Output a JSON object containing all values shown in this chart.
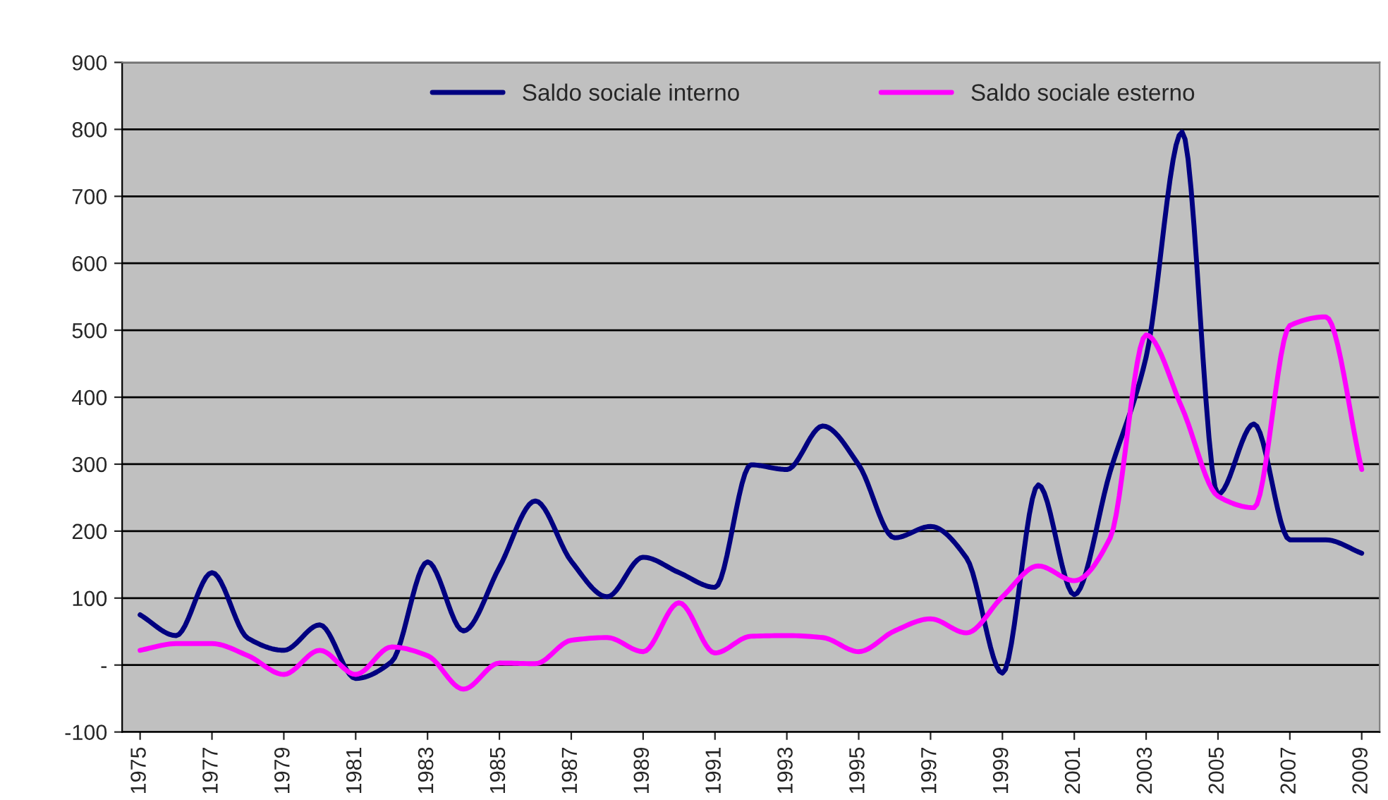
{
  "chart_data": {
    "type": "line",
    "x": [
      1975,
      1976,
      1977,
      1978,
      1979,
      1980,
      1981,
      1982,
      1983,
      1984,
      1985,
      1986,
      1987,
      1988,
      1989,
      1990,
      1991,
      1992,
      1993,
      1994,
      1995,
      1996,
      1997,
      1998,
      1999,
      2000,
      2001,
      2002,
      2003,
      2004,
      2005,
      2006,
      2007,
      2008,
      2009
    ],
    "series": [
      {
        "name": "Saldo sociale interno",
        "color": "#000080",
        "values": [
          75,
          44,
          138,
          40,
          22,
          60,
          -20,
          5,
          154,
          51,
          146,
          245,
          155,
          102,
          161,
          138,
          116,
          299,
          292,
          357,
          299,
          190,
          207,
          160,
          -12,
          269,
          105,
          289,
          460,
          796,
          255,
          360,
          187,
          187,
          167
        ]
      },
      {
        "name": "Saldo sociale esterno",
        "color": "#ff00ff",
        "values": [
          22,
          32,
          32,
          14,
          -14,
          22,
          -14,
          27,
          14,
          -36,
          3,
          2,
          37,
          41,
          20,
          93,
          18,
          43,
          44,
          41,
          20,
          51,
          69,
          48,
          102,
          148,
          126,
          190,
          493,
          384,
          252,
          235,
          507,
          520,
          292
        ]
      }
    ],
    "xlim": [
      1974.5,
      2009.5
    ],
    "xticks": [
      1975,
      1977,
      1979,
      1981,
      1983,
      1985,
      1987,
      1989,
      1991,
      1993,
      1995,
      1997,
      1999,
      2001,
      2003,
      2005,
      2007,
      2009
    ],
    "ylim": [
      -100,
      900
    ],
    "yticks": [
      -100,
      {
        "value": 0,
        "label": "-"
      },
      100,
      200,
      300,
      400,
      500,
      600,
      700,
      800,
      900
    ],
    "grid": "y",
    "legend": "top",
    "line_style": "solid",
    "marker": "none"
  }
}
